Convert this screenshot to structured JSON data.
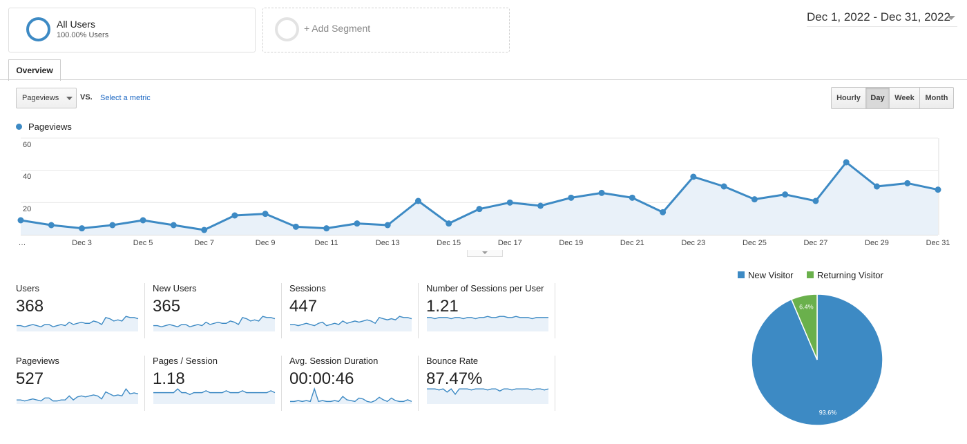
{
  "segments": {
    "all_users": {
      "title": "All Users",
      "subtitle": "100.00% Users"
    },
    "add_segment_label": "+ Add Segment"
  },
  "date_range": "Dec 1, 2022 - Dec 31, 2022",
  "tabs": [
    {
      "label": "Overview",
      "active": true
    }
  ],
  "controls": {
    "metric_select": "Pageviews",
    "vs_label": "VS.",
    "select_metric_link": "Select a metric",
    "granularity": [
      {
        "label": "Hourly",
        "active": false
      },
      {
        "label": "Day",
        "active": true
      },
      {
        "label": "Week",
        "active": false
      },
      {
        "label": "Month",
        "active": false
      }
    ]
  },
  "colors": {
    "accent": "#3d8ac4",
    "returning": "#6ab04c",
    "link": "#1a66c2"
  },
  "icons": {
    "dropdown": "caret-down-icon",
    "segment_ring": "ring-icon"
  },
  "chart_data": [
    {
      "type": "line",
      "legend": "Pageviews",
      "x": [
        "Dec 1",
        "Dec 2",
        "Dec 3",
        "Dec 4",
        "Dec 5",
        "Dec 6",
        "Dec 7",
        "Dec 8",
        "Dec 9",
        "Dec 10",
        "Dec 11",
        "Dec 12",
        "Dec 13",
        "Dec 14",
        "Dec 15",
        "Dec 16",
        "Dec 17",
        "Dec 18",
        "Dec 19",
        "Dec 20",
        "Dec 21",
        "Dec 22",
        "Dec 23",
        "Dec 24",
        "Dec 25",
        "Dec 26",
        "Dec 27",
        "Dec 28",
        "Dec 29",
        "Dec 30",
        "Dec 31"
      ],
      "x_tick_labels": [
        "…",
        "Dec 3",
        "Dec 5",
        "Dec 7",
        "Dec 9",
        "Dec 11",
        "Dec 13",
        "Dec 15",
        "Dec 17",
        "Dec 19",
        "Dec 21",
        "Dec 23",
        "Dec 25",
        "Dec 27",
        "Dec 29",
        "Dec 31"
      ],
      "y_ticks": [
        "20",
        "40",
        "60"
      ],
      "values": [
        9,
        6,
        4,
        6,
        9,
        6,
        3,
        12,
        13,
        5,
        4,
        7,
        6,
        21,
        7,
        16,
        20,
        18,
        23,
        26,
        23,
        14,
        36,
        30,
        22,
        25,
        21,
        45,
        30,
        32,
        28
      ],
      "ylim": [
        0,
        60
      ],
      "grid": true
    },
    {
      "type": "pie",
      "legend_position": "top",
      "categories": [
        "New Visitor",
        "Returning Visitor"
      ],
      "values": [
        93.6,
        6.4
      ],
      "labels": [
        "93.6%",
        "6.4%"
      ],
      "colors": [
        "#3d8ac4",
        "#6ab04c"
      ]
    }
  ],
  "metrics": [
    {
      "label": "Users",
      "value": "368",
      "spark": [
        5,
        5,
        4,
        5,
        6,
        5,
        4,
        6,
        6,
        4,
        5,
        6,
        5,
        8,
        6,
        7,
        8,
        7,
        7,
        9,
        8,
        6,
        12,
        11,
        9,
        10,
        9,
        13,
        12,
        12,
        11
      ]
    },
    {
      "label": "New Users",
      "value": "365",
      "spark": [
        5,
        5,
        4,
        5,
        6,
        5,
        4,
        6,
        6,
        4,
        5,
        6,
        5,
        8,
        6,
        7,
        8,
        7,
        7,
        9,
        8,
        6,
        12,
        11,
        9,
        10,
        9,
        13,
        12,
        12,
        11
      ]
    },
    {
      "label": "Sessions",
      "value": "447",
      "spark": [
        6,
        6,
        5,
        6,
        7,
        6,
        5,
        7,
        8,
        5,
        6,
        7,
        6,
        9,
        7,
        8,
        9,
        8,
        9,
        10,
        9,
        7,
        12,
        11,
        10,
        11,
        10,
        13,
        12,
        12,
        11
      ]
    },
    {
      "label": "Number of Sessions per User",
      "value": "1.21",
      "spark": [
        12,
        12,
        11,
        12,
        12,
        12,
        11,
        12,
        12,
        11,
        12,
        12,
        11,
        12,
        12,
        13,
        12,
        12,
        13,
        13,
        12,
        12,
        13,
        12,
        12,
        12,
        11,
        12,
        12,
        12,
        12
      ]
    },
    {
      "label": "Pageviews",
      "value": "527",
      "spark": [
        4,
        4,
        3,
        4,
        5,
        4,
        3,
        6,
        6,
        3,
        3,
        4,
        4,
        8,
        4,
        7,
        8,
        7,
        8,
        9,
        8,
        5,
        12,
        10,
        8,
        9,
        8,
        15,
        10,
        11,
        10
      ]
    },
    {
      "label": "Pages / Session",
      "value": "1.18",
      "spark": [
        6,
        6,
        6,
        6,
        6,
        6,
        8,
        6,
        6,
        5,
        6,
        6,
        6,
        7,
        6,
        6,
        6,
        6,
        7,
        6,
        6,
        6,
        7,
        6,
        6,
        6,
        6,
        6,
        6,
        7,
        6
      ]
    },
    {
      "label": "Avg. Session Duration",
      "value": "00:00:46",
      "spark": [
        3,
        3,
        4,
        3,
        4,
        3,
        18,
        3,
        4,
        3,
        3,
        4,
        3,
        9,
        5,
        4,
        3,
        7,
        6,
        3,
        2,
        4,
        8,
        5,
        3,
        7,
        4,
        3,
        3,
        5,
        3
      ]
    },
    {
      "label": "Bounce Rate",
      "value": "87.47%",
      "spark": [
        14,
        14,
        14,
        13,
        14,
        11,
        14,
        9,
        14,
        14,
        14,
        13,
        14,
        14,
        14,
        13,
        14,
        14,
        12,
        14,
        14,
        13,
        14,
        14,
        14,
        14,
        13,
        14,
        14,
        13,
        14
      ]
    }
  ]
}
